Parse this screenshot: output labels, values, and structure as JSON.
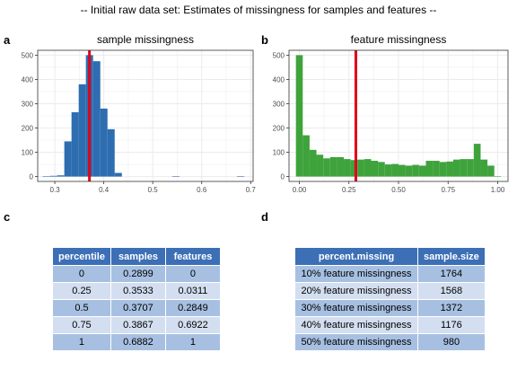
{
  "figure_title": "-- Initial raw data set: Estimates of missingness for samples and features --",
  "panel_labels": [
    "a",
    "b",
    "c",
    "d"
  ],
  "colors": {
    "sample_bar": "#2e6db0",
    "feature_bar": "#3fa33c",
    "threshold_line": "#e0001a",
    "panel_bg": "#ffffff",
    "grid": "#ebebeb",
    "table_header_bg": "#3c6fb6",
    "table_row_odd": "#a7c0e2",
    "table_row_even": "#d3dff0"
  },
  "chart_data": [
    {
      "type": "bar",
      "subtype": "histogram",
      "title": "sample missingness",
      "xlabel": "",
      "ylabel": "",
      "xlim": [
        0.265,
        0.705
      ],
      "ylim": [
        -20,
        520
      ],
      "xticks": [
        0.3,
        0.4,
        0.5,
        0.6,
        0.7
      ],
      "xtick_labels": [
        "0.3",
        "0.4",
        "0.5",
        "0.6",
        "0.7"
      ],
      "yticks": [
        0,
        100,
        200,
        300,
        400,
        500
      ],
      "ytick_labels": [
        "0",
        "100",
        "200",
        "300",
        "400",
        "500"
      ],
      "bin_width": 0.0147,
      "bins": [
        {
          "x": 0.2826,
          "y": 2
        },
        {
          "x": 0.2973,
          "y": 3
        },
        {
          "x": 0.312,
          "y": 5
        },
        {
          "x": 0.3267,
          "y": 145
        },
        {
          "x": 0.3414,
          "y": 265
        },
        {
          "x": 0.3561,
          "y": 380
        },
        {
          "x": 0.3708,
          "y": 500
        },
        {
          "x": 0.3855,
          "y": 475
        },
        {
          "x": 0.4002,
          "y": 280
        },
        {
          "x": 0.4149,
          "y": 195
        },
        {
          "x": 0.4296,
          "y": 15
        },
        {
          "x": 0.5472,
          "y": 2
        },
        {
          "x": 0.6795,
          "y": 2
        }
      ],
      "grid": true,
      "threshold_line": 0.3707
    },
    {
      "type": "bar",
      "subtype": "histogram",
      "title": "feature missingness",
      "xlabel": "",
      "ylabel": "",
      "xlim": [
        -0.052,
        1.052
      ],
      "ylim": [
        -20,
        520
      ],
      "xticks": [
        0,
        0.25,
        0.5,
        0.75,
        1
      ],
      "xtick_labels": [
        "0.00",
        "0.25",
        "0.50",
        "0.75",
        "1.00"
      ],
      "yticks": [
        0,
        100,
        200,
        300,
        400,
        500
      ],
      "ytick_labels": [
        "0",
        "100",
        "200",
        "300",
        "400",
        "500"
      ],
      "bin_width": 0.0345,
      "bins": [
        {
          "x": 0.0,
          "y": 500
        },
        {
          "x": 0.0345,
          "y": 170
        },
        {
          "x": 0.069,
          "y": 110
        },
        {
          "x": 0.1034,
          "y": 90
        },
        {
          "x": 0.1379,
          "y": 75
        },
        {
          "x": 0.1724,
          "y": 80
        },
        {
          "x": 0.2069,
          "y": 80
        },
        {
          "x": 0.2414,
          "y": 72
        },
        {
          "x": 0.2759,
          "y": 68
        },
        {
          "x": 0.3103,
          "y": 70
        },
        {
          "x": 0.3448,
          "y": 72
        },
        {
          "x": 0.3793,
          "y": 65
        },
        {
          "x": 0.4138,
          "y": 60
        },
        {
          "x": 0.4483,
          "y": 50
        },
        {
          "x": 0.4828,
          "y": 52
        },
        {
          "x": 0.5172,
          "y": 48
        },
        {
          "x": 0.5517,
          "y": 45
        },
        {
          "x": 0.5862,
          "y": 48
        },
        {
          "x": 0.6207,
          "y": 45
        },
        {
          "x": 0.6552,
          "y": 65
        },
        {
          "x": 0.6897,
          "y": 65
        },
        {
          "x": 0.7241,
          "y": 60
        },
        {
          "x": 0.7586,
          "y": 62
        },
        {
          "x": 0.7931,
          "y": 70
        },
        {
          "x": 0.8276,
          "y": 72
        },
        {
          "x": 0.8621,
          "y": 72
        },
        {
          "x": 0.8966,
          "y": 135
        },
        {
          "x": 0.931,
          "y": 70
        },
        {
          "x": 0.9655,
          "y": 45
        },
        {
          "x": 1.0,
          "y": 2
        }
      ],
      "grid": true,
      "threshold_line": 0.2849
    }
  ],
  "table_c": {
    "columns": [
      "percentile",
      "samples",
      "features"
    ],
    "rows": [
      [
        "0",
        "0.2899",
        "0"
      ],
      [
        "0.25",
        "0.3533",
        "0.0311"
      ],
      [
        "0.5",
        "0.3707",
        "0.2849"
      ],
      [
        "0.75",
        "0.3867",
        "0.6922"
      ],
      [
        "1",
        "0.6882",
        "1"
      ]
    ]
  },
  "table_d": {
    "columns": [
      "percent.missing",
      "sample.size"
    ],
    "rows": [
      [
        "10% feature missingness",
        "1764"
      ],
      [
        "20% feature missingness",
        "1568"
      ],
      [
        "30% feature missingness",
        "1372"
      ],
      [
        "40% feature missingness",
        "1176"
      ],
      [
        "50% feature missingness",
        "980"
      ]
    ]
  }
}
